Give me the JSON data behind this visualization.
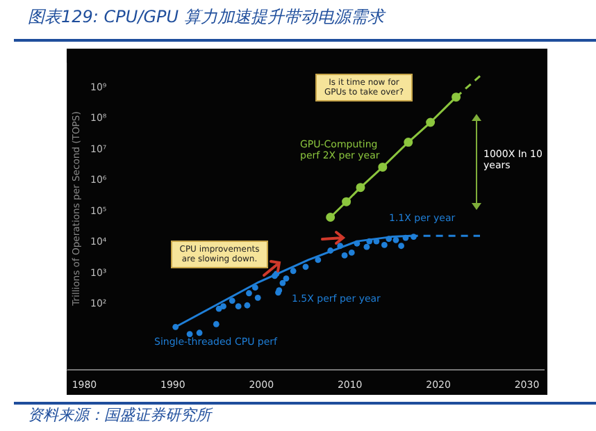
{
  "chart_data": {
    "type": "scatter",
    "title": "图表129: CPU/GPU 算力加速提升带动电源需求",
    "ylabel": "Trillions of Operations per Second (TOPS)",
    "log": "y",
    "xlim": [
      1978,
      2032
    ],
    "xticks": [
      1980,
      1990,
      2000,
      2010,
      2020,
      2030
    ],
    "ylim": [
      0.7,
      6000000000
    ],
    "yticks": [
      {
        "value": 100,
        "label": "10²"
      },
      {
        "value": 1000,
        "label": "10³"
      },
      {
        "value": 10000,
        "label": "10⁴"
      },
      {
        "value": 100000,
        "label": "10⁵"
      },
      {
        "value": 1000000,
        "label": "10⁶"
      },
      {
        "value": 10000000,
        "label": "10⁷"
      },
      {
        "value": 100000000,
        "label": "10⁸"
      },
      {
        "value": 1000000000,
        "label": "10⁹"
      }
    ],
    "series": [
      {
        "color": "#1f7fd8",
        "x": [
          1990.3,
          1991.9,
          1993.0,
          1994.9,
          1995.2,
          1995.7,
          1996.7,
          1997.4,
          1998.4,
          1998.6,
          1999.3,
          1999.6,
          2001.5,
          2001.9,
          2002.4,
          2001.7,
          2002.0,
          2002.8,
          2003.6,
          2005.0,
          2006.4,
          2007.8,
          2008.9,
          2009.4,
          2010.2,
          2010.8,
          2011.9,
          2012.2,
          2013.0,
          2013.9,
          2014.4,
          2015.2,
          2015.8,
          2016.3,
          2017.2
        ],
        "values": [
          17,
          10,
          11,
          21,
          66,
          79,
          120,
          79,
          85,
          210,
          320,
          150,
          760,
          220,
          450,
          890,
          260,
          630,
          1100,
          1500,
          2500,
          5000,
          7100,
          3500,
          4300,
          8500,
          6600,
          10000,
          10000,
          7600,
          12000,
          11000,
          7100,
          13000,
          14000
        ]
      },
      {
        "type": "line",
        "color": "#1f7fd8",
        "marker": "none",
        "line_style": "solid",
        "x": [
          1990.3,
          1999.7,
          2005.3,
          2010.8,
          2014.7,
          2016.9
        ],
        "values": [
          17,
          480,
          2500,
          10000,
          14000,
          15000
        ]
      },
      {
        "type": "line",
        "color": "#1f7fd8",
        "marker": "none",
        "line_style": "dashed",
        "x": [
          2016.9,
          2024.7
        ],
        "values": [
          15000,
          15000
        ]
      },
      {
        "type": "line",
        "color": "#8cc63e",
        "marker": "circle",
        "line_style": "solid",
        "x": [
          2007.8,
          2009.6,
          2011.2,
          2013.7,
          2016.6,
          2019.1,
          2022.0
        ],
        "values": [
          60000,
          190000,
          550000,
          2500000,
          16000000,
          70000000,
          460000000
        ]
      },
      {
        "type": "line",
        "color": "#8cc63e",
        "marker": "none",
        "line_style": "dashed",
        "x": [
          2022.0,
          2024.7
        ],
        "values": [
          460000000,
          2200000000
        ]
      }
    ],
    "annotations": [
      "Is it time now for GPUs to take over?",
      "CPU improvements are slowing down.",
      "GPU-Computing perf 2X per year",
      "1000X In 10 years",
      "1.1X per year",
      "1.5X perf per year",
      "Single-threaded CPU perf",
      "资料来源：国盛证券研究所"
    ]
  }
}
